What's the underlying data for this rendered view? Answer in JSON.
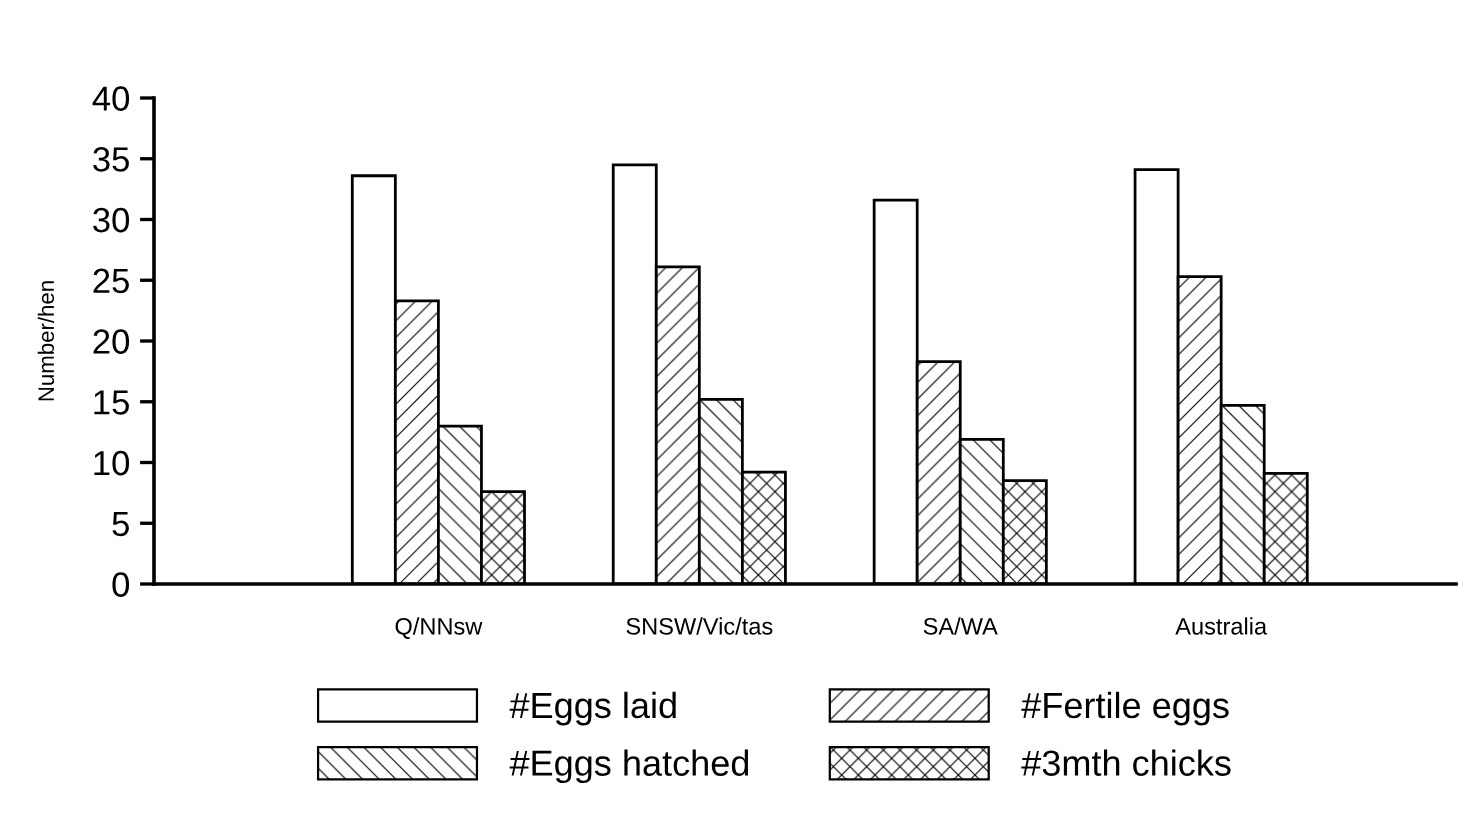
{
  "chart_data": {
    "type": "bar",
    "ylabel": "Number/hen",
    "categories": [
      "Q/NNsw",
      "SNSW/Vic/tas",
      "SA/WA",
      "Australia"
    ],
    "series": [
      {
        "name": "#Eggs laid",
        "color": "#ffffff",
        "values": [
          33.6,
          34.5,
          31.6,
          34.1
        ]
      },
      {
        "name": "#Fertile eggs",
        "color": "#ffffff",
        "values": [
          23.3,
          26.1,
          18.3,
          25.3
        ]
      },
      {
        "name": "#Eggs hatched",
        "color": "#ffffff",
        "values": [
          13.0,
          15.2,
          11.9,
          14.7
        ]
      },
      {
        "name": "#3mth chicks",
        "color": "#ffffff",
        "values": [
          7.6,
          9.2,
          8.5,
          9.1
        ]
      }
    ],
    "ylim": [
      0,
      40
    ],
    "yticks": [
      0,
      5,
      10,
      15,
      20,
      25,
      30,
      35,
      40
    ],
    "grid": false,
    "legend": "bottom"
  }
}
